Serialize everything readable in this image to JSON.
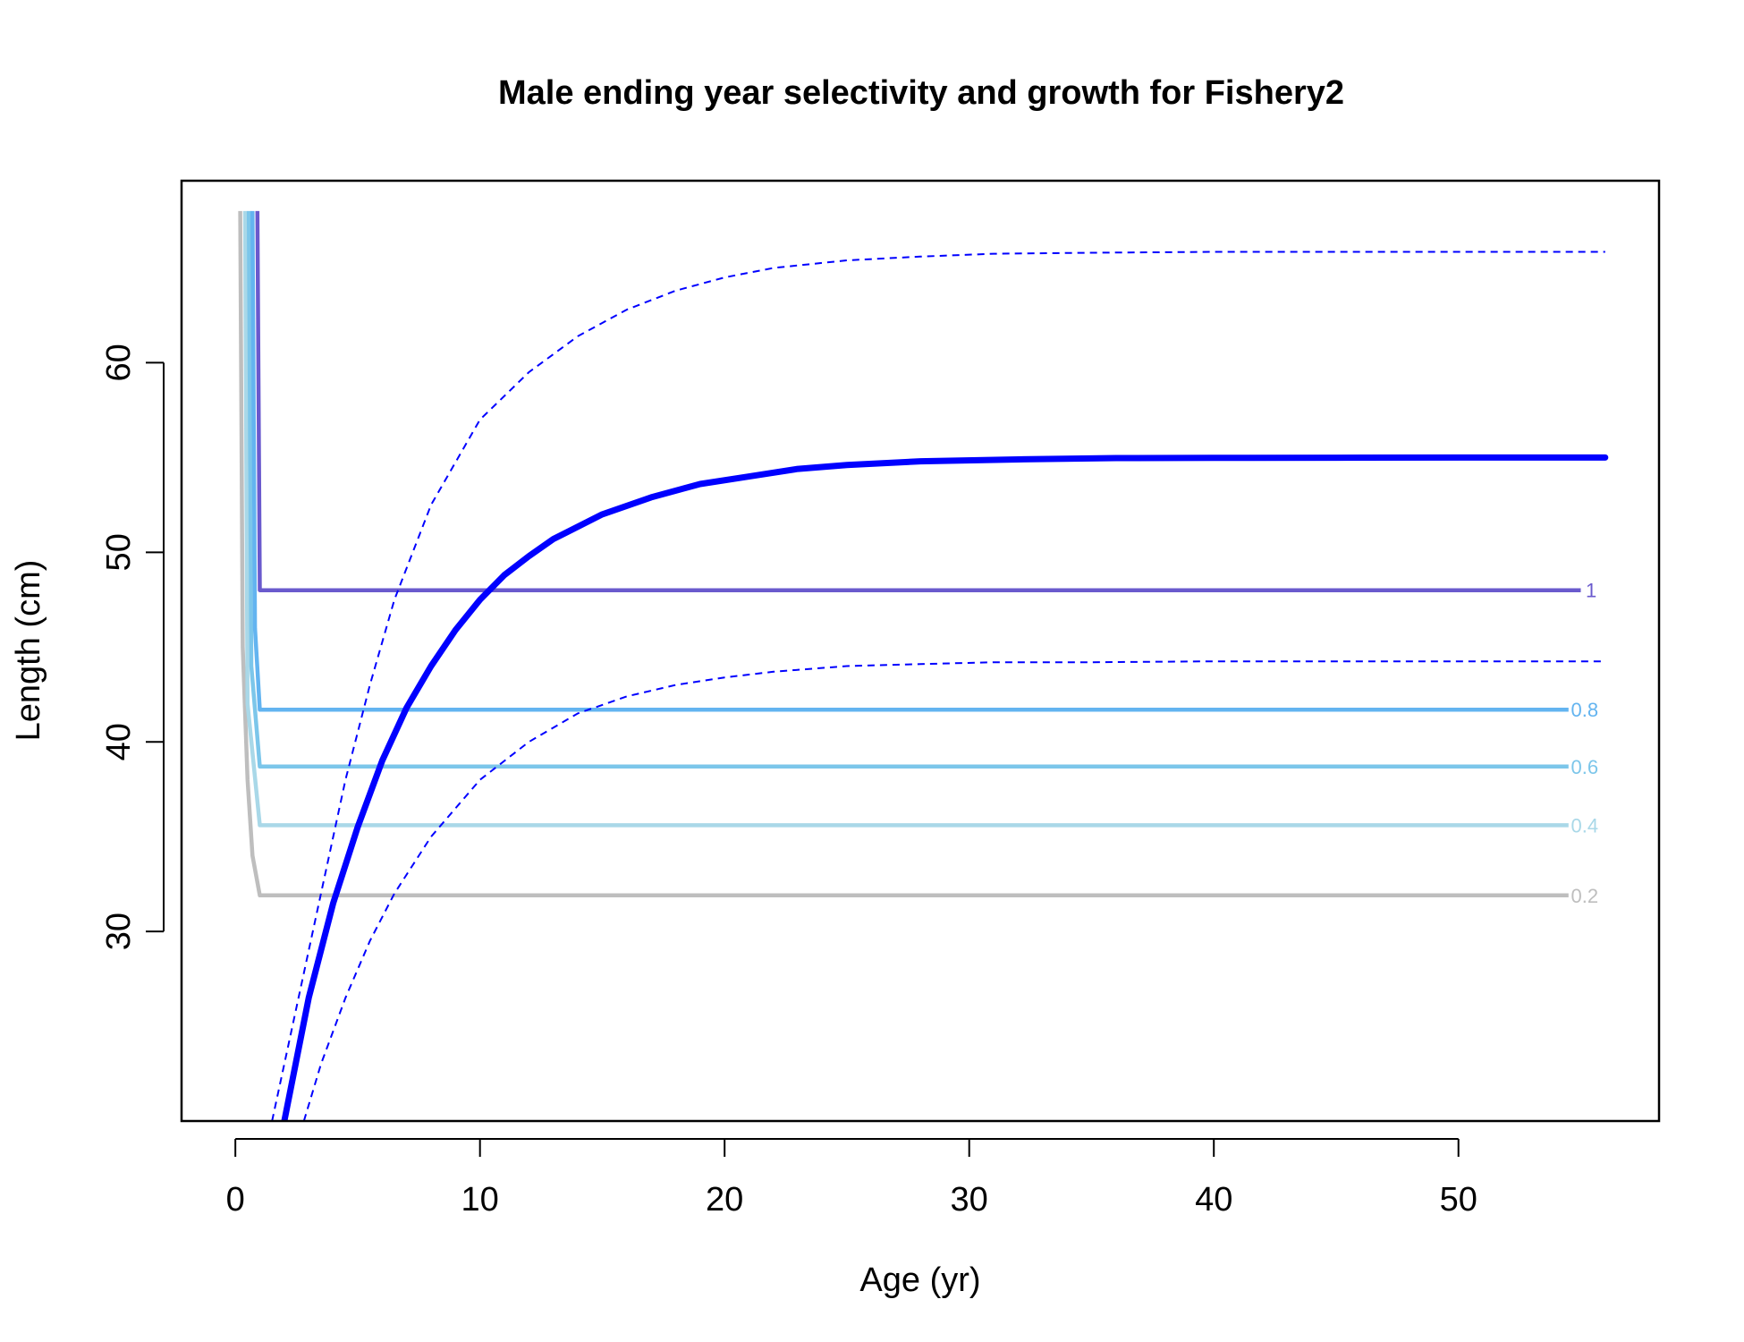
{
  "chart_data": {
    "type": "line",
    "title": "Male ending year selectivity and growth for Fishery2",
    "xlabel": "Age (yr)",
    "ylabel": "Length (cm)",
    "xlim": [
      -2.2,
      58.2
    ],
    "ylim": [
      20.0,
      69.6
    ],
    "xticks": [
      0,
      10,
      20,
      30,
      40,
      50
    ],
    "yticks": [
      30,
      40,
      50,
      60
    ],
    "grid": false,
    "legend": "none",
    "selectivity_contours": [
      {
        "label": "1",
        "color": "#6A5ACD",
        "level_length": 48.0,
        "label_x": 55.2,
        "x": [
          0.9,
          1.0,
          55.0
        ],
        "y": [
          68.0,
          48.0,
          48.0
        ],
        "spike_x": 1.0
      },
      {
        "label": "0.8",
        "color": "#63B4F0",
        "level_length": 41.7,
        "label_x": 54.6,
        "x": [
          0.7,
          0.8,
          1.0,
          54.5
        ],
        "y": [
          68.0,
          46.0,
          41.7,
          41.7
        ],
        "spike_x": 0.75
      },
      {
        "label": "0.6",
        "color": "#7CC6EA",
        "level_length": 38.7,
        "label_x": 54.6,
        "x": [
          0.55,
          0.65,
          1.0,
          54.5
        ],
        "y": [
          68.0,
          44.0,
          38.7,
          38.7
        ],
        "spike_x": 0.55
      },
      {
        "label": "0.4",
        "color": "#A9D8E8",
        "level_length": 35.6,
        "label_x": 54.6,
        "x": [
          0.4,
          0.5,
          1.0,
          54.5
        ],
        "y": [
          68.0,
          42.0,
          35.6,
          35.6
        ],
        "spike_x": 0.4
      },
      {
        "label": "0.2",
        "color": "#BEBEBE",
        "level_length": 31.9,
        "label_x": 54.6,
        "x": [
          0.2,
          0.3,
          0.5,
          0.7,
          1.0,
          54.5
        ],
        "y": [
          68.0,
          45.0,
          38.0,
          34.0,
          31.9,
          31.9
        ],
        "spike_x": 0.2
      }
    ],
    "growth": {
      "color": "#0000FF",
      "mean": {
        "x": [
          2.0,
          3.0,
          4.0,
          5.0,
          6.0,
          7.0,
          8.0,
          9.0,
          10.0,
          11.0,
          12.0,
          13.0,
          15.0,
          17.0,
          19.0,
          21.0,
          23.0,
          25.0,
          28.0,
          32.0,
          36.0,
          40.0,
          45.0,
          50.0,
          56.0
        ],
        "y": [
          20.0,
          26.5,
          31.5,
          35.5,
          39.0,
          41.8,
          44.0,
          45.9,
          47.5,
          48.8,
          49.8,
          50.7,
          52.0,
          52.9,
          53.6,
          54.0,
          54.4,
          54.6,
          54.8,
          54.9,
          54.97,
          54.98,
          54.99,
          55.0,
          55.0
        ]
      },
      "upper": {
        "x": [
          1.5,
          2.5,
          3.5,
          4.5,
          5.5,
          6.5,
          8.0,
          10.0,
          12.0,
          14.0,
          16.0,
          18.0,
          20.0,
          22.0,
          25.0,
          28.0,
          31.0,
          35.0,
          40.0,
          45.0,
          50.0,
          56.0
        ],
        "y": [
          20.0,
          26.0,
          32.0,
          38.0,
          43.0,
          47.5,
          52.5,
          57.0,
          59.5,
          61.4,
          62.8,
          63.8,
          64.5,
          65.0,
          65.4,
          65.6,
          65.75,
          65.8,
          65.85,
          65.85,
          65.85,
          65.85
        ]
      },
      "lower": {
        "x": [
          2.8,
          3.5,
          4.5,
          5.5,
          6.5,
          8.0,
          10.0,
          12.0,
          14.0,
          16.0,
          18.0,
          20.0,
          22.0,
          25.0,
          28.0,
          31.0,
          35.0,
          40.0,
          45.0,
          50.0,
          56.0
        ],
        "y": [
          20.0,
          23.0,
          26.5,
          29.5,
          32.0,
          35.0,
          38.0,
          40.0,
          41.5,
          42.4,
          43.0,
          43.4,
          43.7,
          44.0,
          44.1,
          44.2,
          44.2,
          44.25,
          44.25,
          44.25,
          44.25
        ]
      }
    }
  }
}
